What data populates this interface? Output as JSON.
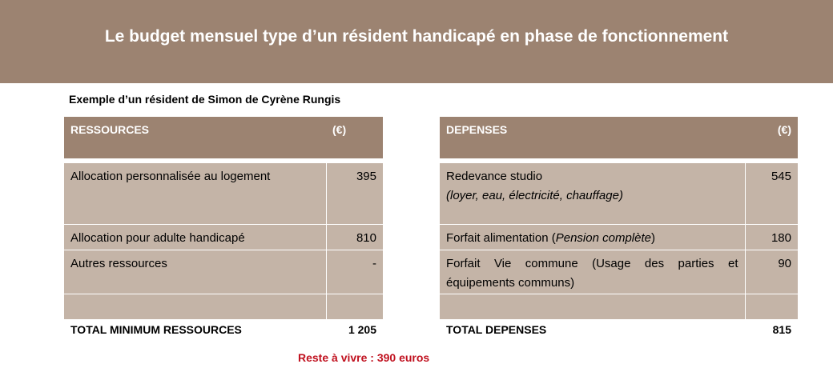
{
  "title": "Le budget mensuel type d’un résident handicapé en phase de fonctionnement",
  "subtitle": "Exemple d’un résident de Simon de Cyrène  Rungis",
  "ressources": {
    "header_label": "RESSOURCES",
    "header_unit": "(€)",
    "rows": [
      {
        "label": "Allocation personnalisée au logement",
        "value": "395"
      },
      {
        "label": "Allocation pour adulte handicapé",
        "value": "810"
      },
      {
        "label": "Autres ressources",
        "value": "-"
      },
      {
        "label": "",
        "value": ""
      }
    ],
    "total_label": "TOTAL MINIMUM  RESSOURCES",
    "total_value": "1 205"
  },
  "depenses": {
    "header_label": "DEPENSES",
    "header_unit": "(€)",
    "rows": [
      {
        "label": "Redevance studio",
        "detail": "(loyer, eau,  électricité, chauffage)",
        "value": "545"
      },
      {
        "label": "Forfait alimentation (",
        "detail": "Pension complète",
        "suffix": ")",
        "value": "180"
      },
      {
        "label": "Forfait Vie commune (Usage des parties et équipements communs)",
        "value": "90"
      },
      {
        "label": "",
        "value": ""
      }
    ],
    "total_label": "TOTAL DEPENSES",
    "total_value": "815"
  },
  "reste": "Reste à vivre : 390 euros",
  "colors": {
    "header": "#9c8371",
    "cell": "#c4b4a7",
    "reste": "#c0111f"
  }
}
